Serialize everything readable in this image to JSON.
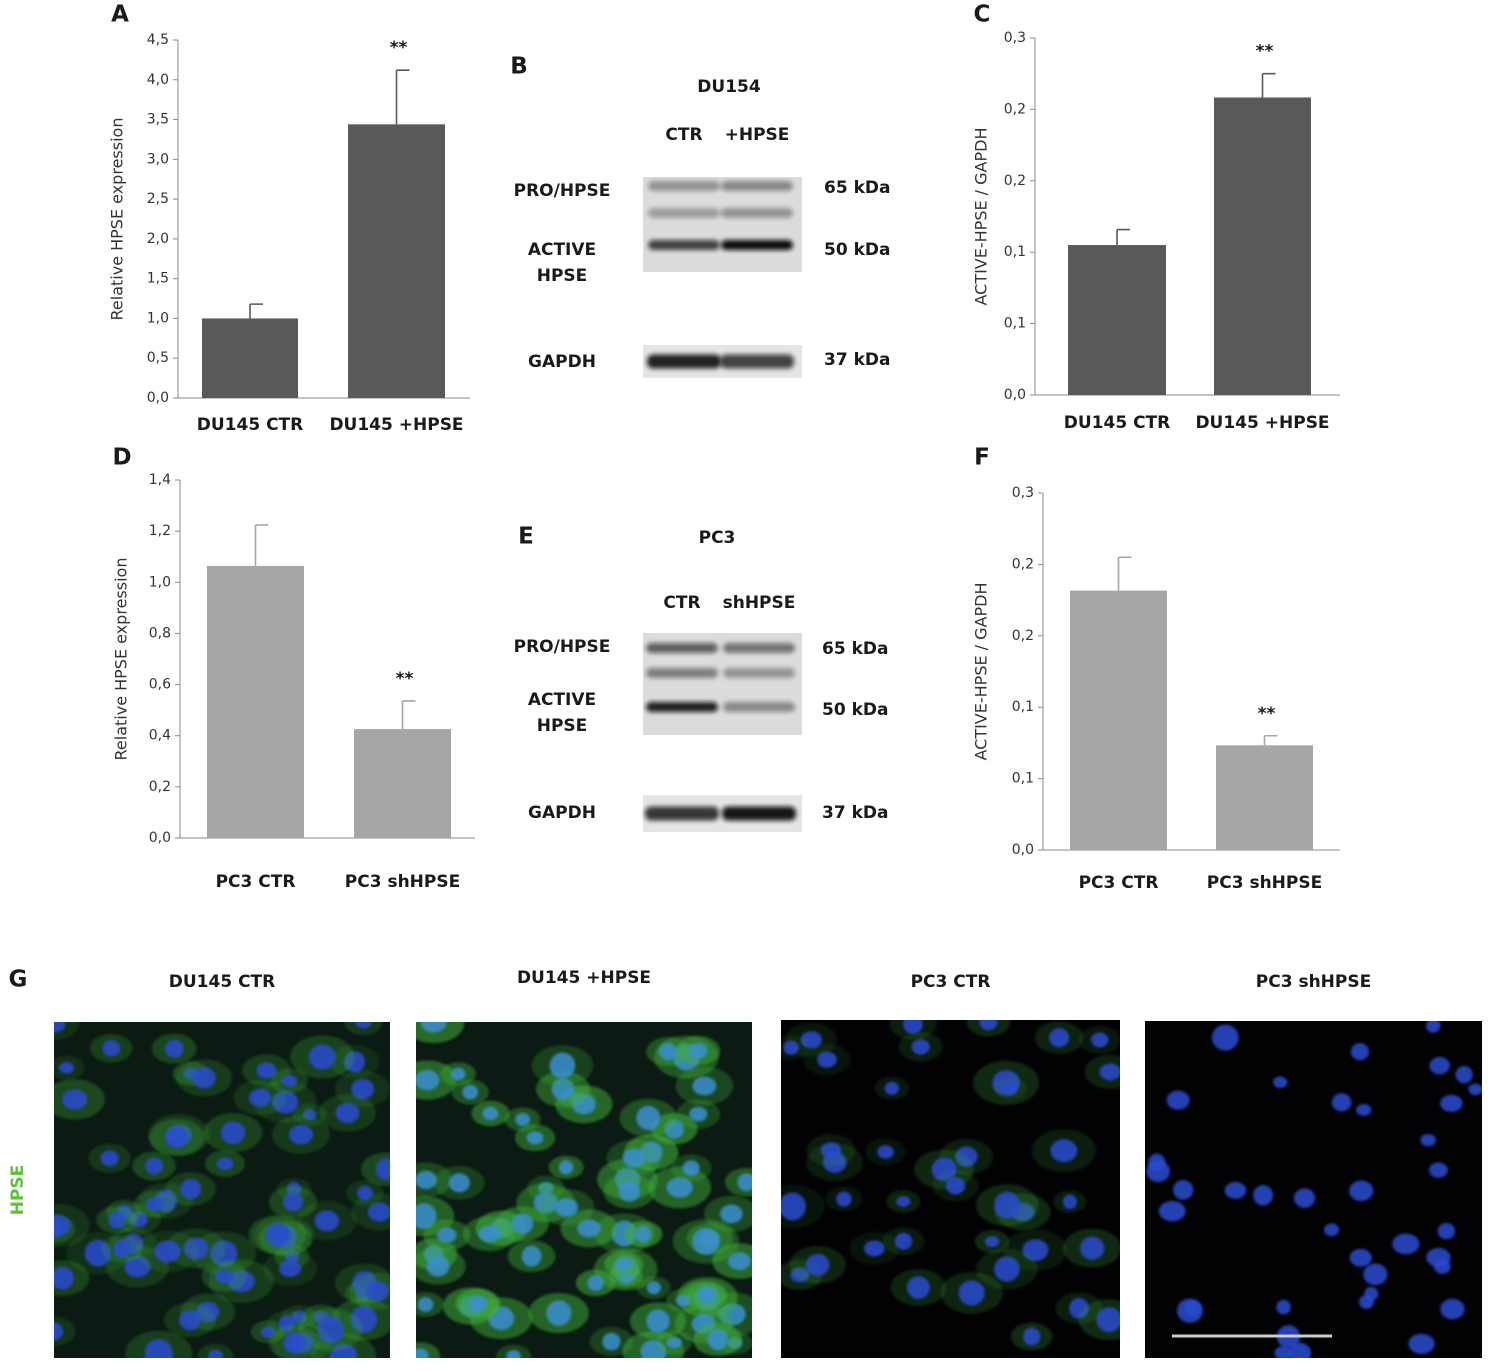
{
  "chart_data": [
    {
      "type": "bar",
      "panel": "A",
      "y_label": "Relative HPSE expression",
      "categories": [
        "DU145 CTR",
        "DU145 +HPSE"
      ],
      "values": [
        1.0,
        3.44
      ],
      "errors": [
        0.18,
        0.68
      ],
      "color": "#595959",
      "ylim": [
        0,
        4.5
      ],
      "yticks": [
        {
          "value": 0,
          "label": "0,0"
        },
        {
          "value": 0.5,
          "label": "0,5"
        },
        {
          "value": 1,
          "label": "1,0"
        },
        {
          "value": 1.5,
          "label": "1,5"
        },
        {
          "value": 2,
          "label": "2,0"
        },
        {
          "value": 2.5,
          "label": "2,5"
        },
        {
          "value": 3,
          "label": "3,0"
        },
        {
          "value": 3.5,
          "label": "3,5"
        },
        {
          "value": 4,
          "label": "4,0"
        },
        {
          "value": 4.5,
          "label": "4,5"
        }
      ],
      "annotations": [
        {
          "category": "DU145 +HPSE",
          "text": "**"
        }
      ]
    },
    {
      "type": "bar",
      "panel": "C",
      "y_label": "ACTIVE-HPSE / GAPDH",
      "categories": [
        "DU145 CTR",
        "DU145 +HPSE"
      ],
      "values": [
        0.126,
        0.25
      ],
      "errors": [
        0.013,
        0.02
      ],
      "color": "#595959",
      "ylim": [
        0,
        0.3
      ],
      "yticks": [
        {
          "value": 0,
          "label": "0,0"
        },
        {
          "value": 0.06,
          "label": "0,1"
        },
        {
          "value": 0.12,
          "label": "0,1"
        },
        {
          "value": 0.18,
          "label": "0,2"
        },
        {
          "value": 0.24,
          "label": "0,2"
        },
        {
          "value": 0.3,
          "label": "0,3"
        }
      ],
      "annotations": [
        {
          "category": "DU145 +HPSE",
          "text": "**"
        }
      ]
    },
    {
      "type": "bar",
      "panel": "D",
      "y_label": "Relative HPSE expression",
      "categories": [
        "PC3 CTR",
        "PC3 shHPSE"
      ],
      "values": [
        1.064,
        0.426
      ],
      "errors": [
        0.16,
        0.11
      ],
      "color": "#a6a6a6",
      "ylim": [
        0,
        1.4
      ],
      "yticks": [
        {
          "value": 0,
          "label": "0,0"
        },
        {
          "value": 0.2,
          "label": "0,2"
        },
        {
          "value": 0.4,
          "label": "0,4"
        },
        {
          "value": 0.6,
          "label": "0,6"
        },
        {
          "value": 0.8,
          "label": "0,8"
        },
        {
          "value": 1,
          "label": "1,0"
        },
        {
          "value": 1.2,
          "label": "1,2"
        },
        {
          "value": 1.4,
          "label": "1,4"
        }
      ],
      "annotations": [
        {
          "category": "PC3 shHPSE",
          "text": "**"
        }
      ]
    },
    {
      "type": "bar",
      "panel": "F",
      "y_label": "ACTIVE-HPSE / GAPDH",
      "categories": [
        "PC3 CTR",
        "PC3 shHPSE"
      ],
      "values": [
        0.218,
        0.088
      ],
      "errors": [
        0.028,
        0.008
      ],
      "color": "#a6a6a6",
      "ylim": [
        0,
        0.3
      ],
      "yticks": [
        {
          "value": 0,
          "label": "0,0"
        },
        {
          "value": 0.06,
          "label": "0,1"
        },
        {
          "value": 0.12,
          "label": "0,1"
        },
        {
          "value": 0.18,
          "label": "0,2"
        },
        {
          "value": 0.24,
          "label": "0,2"
        },
        {
          "value": 0.3,
          "label": "0,3"
        }
      ],
      "annotations": [
        {
          "category": "PC3 shHPSE",
          "text": "**"
        }
      ]
    }
  ],
  "blots": [
    {
      "panel": "B",
      "title": "DU154",
      "lanes": [
        "CTR",
        "+HPSE"
      ],
      "bands": [
        {
          "label": [
            "PRO/HPSE"
          ],
          "size": "65 kDa"
        },
        {
          "label": [
            "ACTIVE",
            "HPSE"
          ],
          "size": "50 kDa"
        },
        {
          "label": [
            "GAPDH"
          ],
          "size": "37 kDa"
        }
      ]
    },
    {
      "panel": "E",
      "title": "PC3",
      "lanes": [
        "CTR",
        "shHPSE"
      ],
      "bands": [
        {
          "label": [
            "PRO/HPSE"
          ],
          "size": "65 kDa"
        },
        {
          "label": [
            "ACTIVE",
            "HPSE"
          ],
          "size": "50 kDa"
        },
        {
          "label": [
            "GAPDH"
          ],
          "size": "37 kDa"
        }
      ]
    }
  ],
  "microscopy": {
    "panel": "G",
    "stain": "HPSE",
    "conditions": [
      "DU145 CTR",
      "DU145 +HPSE",
      "PC3 CTR",
      "PC3 shHPSE"
    ]
  }
}
